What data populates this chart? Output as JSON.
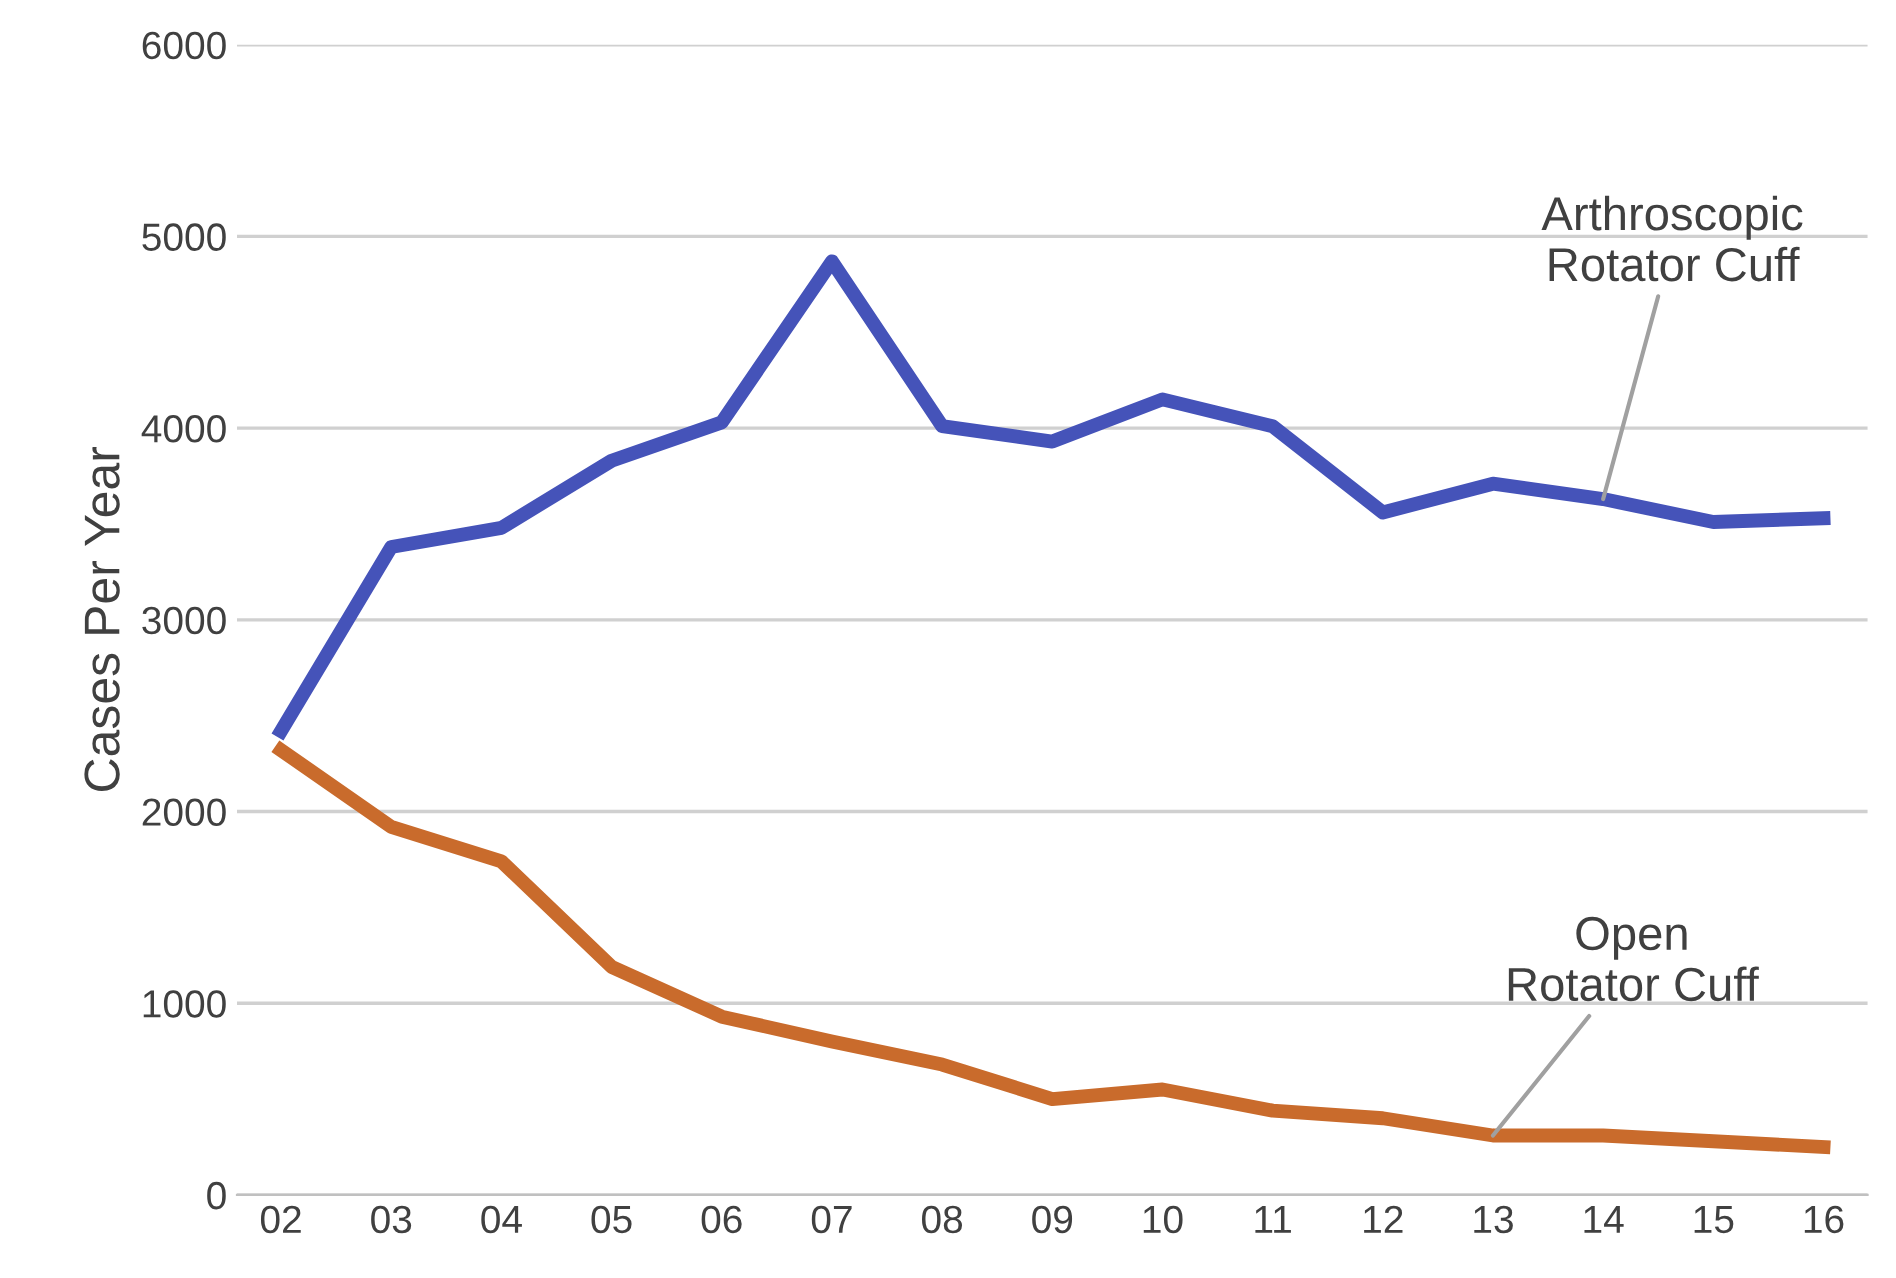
{
  "chart_data": {
    "type": "line",
    "ylabel": "Cases Per Year",
    "categories": [
      "02",
      "03",
      "04",
      "05",
      "06",
      "07",
      "08",
      "09",
      "10",
      "11",
      "12",
      "13",
      "14",
      "15",
      "16"
    ],
    "series": [
      {
        "color": "#4553b9",
        "values": [
          2420,
          3380,
          3480,
          3830,
          4030,
          4870,
          4010,
          3930,
          4150,
          4010,
          3560,
          3710,
          3630,
          3510,
          3530
        ]
      },
      {
        "color": "#c96b2c",
        "values": [
          2320,
          1920,
          1740,
          1190,
          930,
          800,
          680,
          500,
          550,
          440,
          400,
          310,
          310,
          280,
          250
        ]
      }
    ],
    "annotations": [
      {
        "text": "Arthroscopic\nRotator Cuff",
        "x": "14",
        "y": 3630
      },
      {
        "text": "Open\nRotator Cuff",
        "x": "13",
        "y": 310
      }
    ],
    "ylim": [
      0,
      6000
    ],
    "yticks": [
      0,
      1000,
      2000,
      3000,
      4000,
      5000,
      6000
    ],
    "grid": "y",
    "legend": false,
    "marker": "none",
    "line_style": "solid"
  }
}
